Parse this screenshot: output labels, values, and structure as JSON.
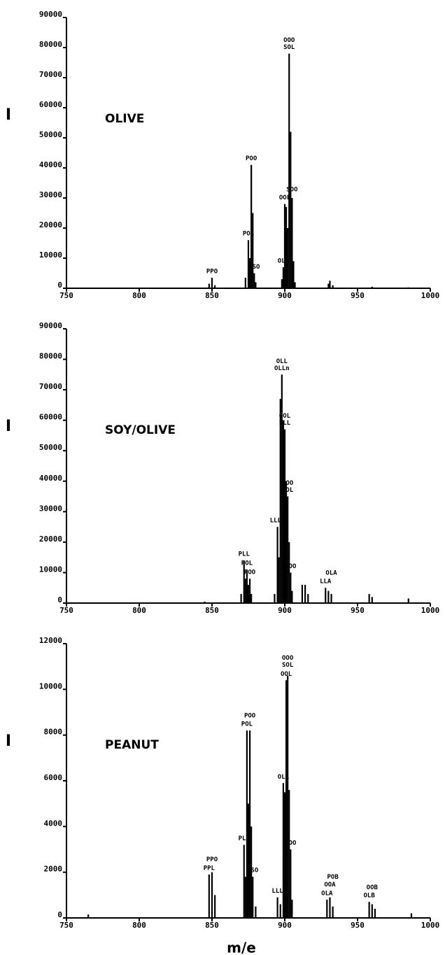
{
  "chart_data": [
    {
      "type": "bar",
      "title": "OLIVE",
      "ylabel": "I",
      "color": "#000000",
      "xlim": [
        750,
        1000
      ],
      "xticks": [
        750,
        800,
        850,
        900,
        950,
        1000
      ],
      "ylim": [
        0,
        90000
      ],
      "yticks": [
        0,
        10000,
        20000,
        30000,
        40000,
        50000,
        60000,
        70000,
        80000,
        90000
      ],
      "x": [
        848,
        850,
        852,
        873,
        875,
        876,
        877,
        878,
        879,
        880,
        898,
        899,
        900,
        901,
        902,
        903,
        904,
        905,
        906,
        907,
        930,
        931,
        933,
        960,
        985
      ],
      "values": [
        1500,
        3500,
        1000,
        3500,
        16000,
        10000,
        41000,
        25000,
        5000,
        2000,
        3000,
        7000,
        28000,
        27000,
        20000,
        78000,
        52000,
        30000,
        9000,
        2000,
        1500,
        2500,
        1000,
        500,
        300
      ],
      "labels": [
        null,
        [
          "PPO"
        ],
        null,
        null,
        [
          "POL"
        ],
        null,
        [
          "POO"
        ],
        null,
        [
          "PSO"
        ],
        null,
        null,
        [
          "OLL"
        ],
        [
          "OOL"
        ],
        null,
        null,
        [
          "OOO",
          "SOL"
        ],
        null,
        [
          "SOO"
        ],
        null,
        null,
        null,
        null,
        null,
        null,
        null
      ]
    },
    {
      "type": "bar",
      "title": "SOY/OLIVE",
      "ylabel": "I",
      "color": "#000000",
      "xlim": [
        750,
        1000
      ],
      "xticks": [
        750,
        800,
        850,
        900,
        950,
        1000
      ],
      "ylim": [
        0,
        90000
      ],
      "yticks": [
        0,
        10000,
        20000,
        30000,
        40000,
        50000,
        60000,
        70000,
        80000,
        90000
      ],
      "x": [
        845,
        870,
        872,
        873,
        874,
        875,
        876,
        877,
        893,
        895,
        896,
        897,
        898,
        899,
        900,
        901,
        902,
        903,
        904,
        905,
        912,
        914,
        916,
        928,
        930,
        932,
        958,
        960,
        985
      ],
      "values": [
        500,
        3000,
        14000,
        8000,
        11000,
        6000,
        8000,
        3000,
        3000,
        25000,
        15000,
        67000,
        75000,
        60000,
        57000,
        40000,
        35000,
        20000,
        10000,
        4000,
        6000,
        6000,
        3000,
        5000,
        4000,
        3000,
        3000,
        2000,
        1500
      ],
      "labels": [
        null,
        null,
        [
          "PLL"
        ],
        null,
        [
          "POL"
        ],
        null,
        [
          "POO"
        ],
        null,
        null,
        [
          "LLLn"
        ],
        null,
        null,
        [
          "OLL",
          "OLLn"
        ],
        null,
        [
          "OOL",
          "SLL"
        ],
        null,
        [
          "OOO",
          "SOL"
        ],
        null,
        [
          "SOO"
        ],
        null,
        null,
        null,
        null,
        [
          "LLA"
        ],
        null,
        [
          "OLA"
        ],
        null,
        null,
        null
      ]
    },
    {
      "type": "bar",
      "title": "PEANUT",
      "ylabel": "I",
      "xlabel": "m/e",
      "color": "#000000",
      "xlim": [
        750,
        1000
      ],
      "xticks": [
        750,
        800,
        850,
        900,
        950,
        1000
      ],
      "ylim": [
        0,
        12000
      ],
      "yticks": [
        0,
        2000,
        4000,
        6000,
        8000,
        10000,
        12000
      ],
      "x": [
        765,
        848,
        850,
        852,
        872,
        873,
        874,
        875,
        876,
        877,
        878,
        880,
        895,
        897,
        899,
        900,
        901,
        902,
        903,
        904,
        905,
        929,
        931,
        933,
        958,
        960,
        962,
        987
      ],
      "values": [
        150,
        1900,
        2000,
        1000,
        3200,
        1800,
        8200,
        5000,
        8200,
        4000,
        1800,
        500,
        900,
        600,
        5900,
        5500,
        10400,
        10600,
        5600,
        3000,
        800,
        800,
        900,
        500,
        700,
        600,
        400,
        200
      ],
      "labels": [
        null,
        [
          "PPL"
        ],
        [
          "PPO"
        ],
        null,
        [
          "PLL"
        ],
        null,
        [
          "POL"
        ],
        null,
        [
          "POO"
        ],
        null,
        [
          "PSO"
        ],
        null,
        [
          "LLL"
        ],
        null,
        [
          "OLL"
        ],
        null,
        [
          "OOL"
        ],
        [
          "OOO",
          "SOL"
        ],
        null,
        [
          "SOO"
        ],
        null,
        [
          "OLA"
        ],
        [
          "OOA"
        ],
        [
          "POB"
        ],
        [
          "OLB"
        ],
        [
          "OOB"
        ],
        null,
        null
      ]
    }
  ]
}
